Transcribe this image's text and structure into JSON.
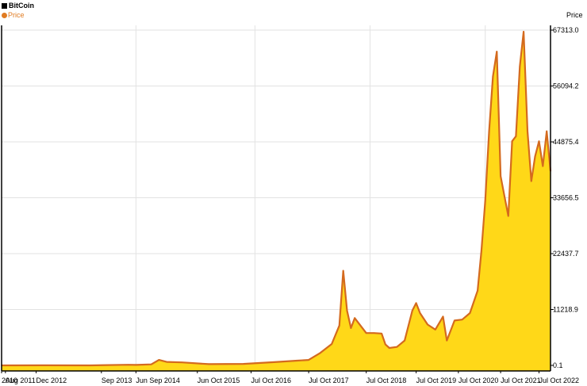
{
  "chart_data": {
    "type": "area",
    "title": "BitCoin",
    "ylabel": "Price",
    "legend": {
      "title": "BitCoin",
      "series": "Price",
      "position": "top-left"
    },
    "colors": {
      "line": "#d46a1e",
      "fill": "#ffd818",
      "grid": "#e2e2e2",
      "axis": "#000000"
    },
    "grid": true,
    "ylim": [
      0.1,
      67313.0
    ],
    "y_ticks": [
      "67313.0",
      "56094.2",
      "44875.4",
      "33656.5",
      "22437.7",
      "11218.9",
      "0.1"
    ],
    "y_tick_values": [
      67313.0,
      56094.2,
      44875.4,
      33656.5,
      22437.7,
      11218.9,
      0.1
    ],
    "x_range": [
      "2010-07",
      "2022-06"
    ],
    "x_ticks": [
      {
        "date": "2010-07",
        "label": "2010"
      },
      {
        "date": "2010-08",
        "label": "Aug 2011"
      },
      {
        "date": "2011-04",
        "label": "Dec 2012"
      },
      {
        "date": "2012-09",
        "label": "Sep 2013"
      },
      {
        "date": "2013-06",
        "label": "Jun Sep 2014"
      },
      {
        "date": "2014-10",
        "label": "Jun Oct 2015"
      },
      {
        "date": "2015-12",
        "label": "Jul Oct 2016"
      },
      {
        "date": "2017-03",
        "label": "Jul Oct 2017"
      },
      {
        "date": "2018-06",
        "label": "Jul Oct 2018"
      },
      {
        "date": "2019-07",
        "label": "Jul Oct 2019"
      },
      {
        "date": "2020-06",
        "label": "Jul Oct 2020"
      },
      {
        "date": "2021-05",
        "label": "Jul Oct 2021"
      },
      {
        "date": "2022-03",
        "label": "Jul Oct 2022"
      }
    ],
    "gridline_dates": [
      "2013-06",
      "2016-01",
      "2018-07",
      "2021-01"
    ],
    "series": [
      {
        "name": "Price",
        "points": [
          [
            "2010-07",
            0.1
          ],
          [
            "2011-06",
            15
          ],
          [
            "2012-06",
            7
          ],
          [
            "2013-04",
            120
          ],
          [
            "2013-06",
            100
          ],
          [
            "2013-10",
            200
          ],
          [
            "2013-12",
            1100
          ],
          [
            "2014-02",
            700
          ],
          [
            "2014-06",
            600
          ],
          [
            "2015-01",
            250
          ],
          [
            "2015-10",
            300
          ],
          [
            "2016-06",
            650
          ],
          [
            "2016-12",
            950
          ],
          [
            "2017-03",
            1100
          ],
          [
            "2017-06",
            2500
          ],
          [
            "2017-09",
            4300
          ],
          [
            "2017-11",
            8000
          ],
          [
            "2017-12",
            19000
          ],
          [
            "2018-01",
            11000
          ],
          [
            "2018-02",
            7500
          ],
          [
            "2018-03",
            9500
          ],
          [
            "2018-04",
            8500
          ],
          [
            "2018-05",
            7500
          ],
          [
            "2018-06",
            6500
          ],
          [
            "2018-08",
            6500
          ],
          [
            "2018-10",
            6400
          ],
          [
            "2018-11",
            4200
          ],
          [
            "2018-12",
            3500
          ],
          [
            "2019-02",
            3700
          ],
          [
            "2019-04",
            5000
          ],
          [
            "2019-06",
            11000
          ],
          [
            "2019-07",
            12500
          ],
          [
            "2019-08",
            10500
          ],
          [
            "2019-10",
            8200
          ],
          [
            "2019-12",
            7200
          ],
          [
            "2020-02",
            9800
          ],
          [
            "2020-03",
            5000
          ],
          [
            "2020-05",
            9000
          ],
          [
            "2020-07",
            9200
          ],
          [
            "2020-09",
            10500
          ],
          [
            "2020-11",
            15000
          ],
          [
            "2020-12",
            23000
          ],
          [
            "2021-01",
            33000
          ],
          [
            "2021-02",
            47000
          ],
          [
            "2021-03",
            58000
          ],
          [
            "2021-04",
            63000
          ],
          [
            "2021-05",
            38000
          ],
          [
            "2021-06",
            34000
          ],
          [
            "2021-07",
            30000
          ],
          [
            "2021-08",
            45000
          ],
          [
            "2021-09",
            46000
          ],
          [
            "2021-10",
            60000
          ],
          [
            "2021-11",
            67000
          ],
          [
            "2021-12",
            47000
          ],
          [
            "2022-01",
            37000
          ],
          [
            "2022-02",
            42000
          ],
          [
            "2022-03",
            45000
          ],
          [
            "2022-04",
            40000
          ],
          [
            "2022-05",
            47000
          ],
          [
            "2022-06",
            39000
          ]
        ]
      }
    ]
  }
}
